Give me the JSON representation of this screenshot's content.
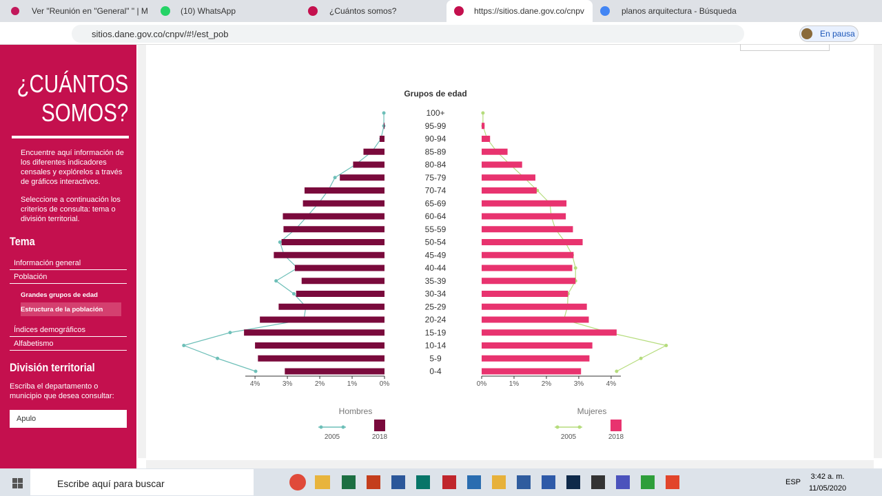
{
  "browser": {
    "tabs": [
      "Ver \"Reunión en \"General\" \" | M",
      "(10) WhatsApp",
      "¿Cuántos somos?",
      "https://sitios.dane.gov.co/cnpv",
      "planos arquitectura - Búsqueda"
    ],
    "address": "sitios.dane.gov.co/cnpv/#!/est_pob",
    "profile": "En pausa"
  },
  "sidebar": {
    "title": [
      "¿CUÁNTOS",
      "SOMOS?"
    ],
    "intro": [
      "Encuentre aquí información de los diferentes indicadores censales y explórelos a través de gráficos interactivos.",
      "Seleccione a continuación los criterios de consulta: tema o división territorial."
    ],
    "tema": "Tema",
    "menu": [
      "Información general",
      "Población",
      "Índices demográficos",
      "Alfabetismo"
    ],
    "submenu": [
      "Grandes grupos de edad",
      "Estructura de la población"
    ],
    "division": "División territorial",
    "prompt": "Escriba el departamento o municipio que desea consultar:",
    "select": "Apulo"
  },
  "chart_data": {
    "type": "pyramid",
    "title": "Grupos de edad",
    "categories": [
      "100+",
      "95-99",
      "90-94",
      "85-89",
      "80-84",
      "75-79",
      "70-74",
      "65-69",
      "60-64",
      "55-59",
      "50-54",
      "45-49",
      "40-44",
      "35-39",
      "30-34",
      "25-29",
      "20-24",
      "15-19",
      "10-14",
      "5-9",
      "0-4"
    ],
    "panels": [
      {
        "label": "Hombres",
        "side": "left",
        "xlim": [
          0,
          4.3
        ],
        "xticks": [
          {
            "value": 0,
            "label": "0%"
          },
          {
            "value": 1,
            "label": "1%"
          },
          {
            "value": 2,
            "label": "2%"
          },
          {
            "value": 3,
            "label": "3%"
          },
          {
            "value": 4,
            "label": "4%"
          }
        ],
        "series": [
          {
            "name": "2005",
            "type": "line",
            "color": "#6dbfb8",
            "values": [
              0.02,
              0.02,
              0.11,
              0.39,
              0.9,
              1.53,
              1.74,
              2.04,
              2.39,
              2.75,
              3.23,
              3.1,
              2.69,
              3.35,
              2.8,
              2.43,
              2.49,
              4.77,
              6.2,
              5.16,
              3.98
            ]
          },
          {
            "name": "2018",
            "type": "bar",
            "color": "#7a0a3c",
            "values": [
              0,
              0.02,
              0.15,
              0.65,
              0.97,
              1.38,
              2.47,
              2.52,
              3.14,
              3.12,
              3.18,
              3.42,
              2.77,
              2.56,
              2.73,
              3.27,
              3.85,
              4.34,
              4.0,
              3.91,
              3.08
            ]
          }
        ]
      },
      {
        "label": "Mujeres",
        "side": "right",
        "xlim": [
          0,
          4.3
        ],
        "xticks": [
          {
            "value": 0,
            "label": "0%"
          },
          {
            "value": 1,
            "label": "1%"
          },
          {
            "value": 2,
            "label": "2%"
          },
          {
            "value": 3,
            "label": "3%"
          },
          {
            "value": 4,
            "label": "4%"
          }
        ],
        "series": [
          {
            "name": "2005",
            "type": "line",
            "color": "#b5dc7c",
            "values": [
              0.04,
              0.04,
              0.17,
              0.47,
              0.88,
              1.31,
              1.72,
              2.11,
              2.15,
              2.28,
              2.58,
              2.8,
              2.9,
              2.9,
              2.67,
              2.65,
              2.54,
              3.94,
              5.7,
              4.92,
              4.17
            ]
          },
          {
            "name": "2018",
            "type": "bar",
            "color": "#e8336f",
            "values": [
              0,
              0.09,
              0.26,
              0.8,
              1.25,
              1.66,
              1.7,
              2.62,
              2.6,
              2.82,
              3.12,
              2.84,
              2.8,
              2.9,
              2.67,
              3.25,
              3.31,
              4.17,
              3.42,
              3.33,
              3.07
            ]
          }
        ]
      }
    ]
  },
  "taskbar": {
    "search": "Escribe aquí para buscar",
    "lang": "ESP",
    "time": "3:42 a. m.",
    "date": "11/05/2020"
  }
}
